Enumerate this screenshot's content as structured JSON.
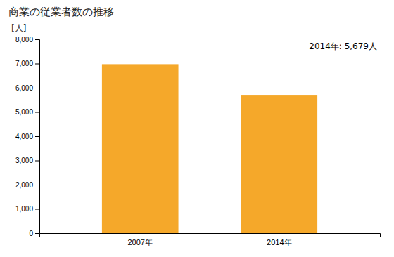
{
  "chart_data": {
    "type": "bar",
    "title": "商業の従業者数の推移",
    "ylabel": "[人]",
    "categories": [
      "2007年",
      "2014年"
    ],
    "values": [
      6974,
      5679
    ],
    "color": "#F5A82A",
    "ylim": [
      0,
      8000
    ],
    "yticks": [
      0,
      {
        "value": 1000,
        "label": "1,000"
      },
      {
        "value": 2000,
        "label": "2,000"
      },
      {
        "value": 3000,
        "label": "3,000"
      },
      {
        "value": 4000,
        "label": "4,000"
      },
      {
        "value": 5000,
        "label": "5,000"
      },
      {
        "value": 6000,
        "label": "6,000"
      },
      {
        "value": 7000,
        "label": "7,000"
      },
      {
        "value": 8000,
        "label": "8,000"
      }
    ],
    "annotation": "2014年: 5,679人",
    "grid": false
  }
}
